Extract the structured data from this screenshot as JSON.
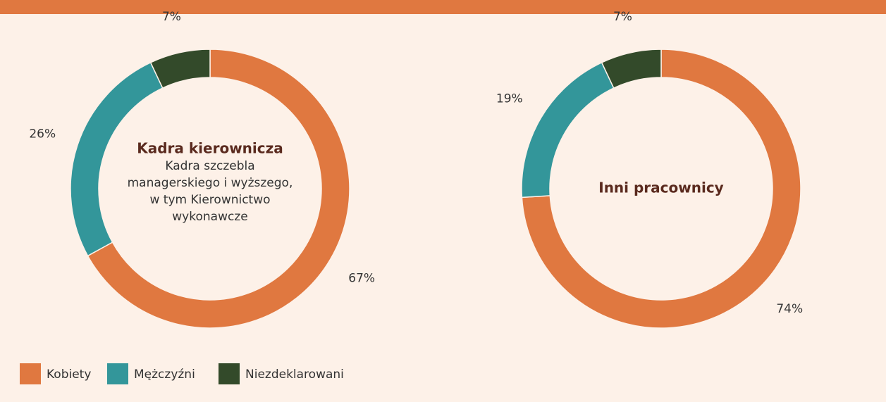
{
  "chart_data": [
    {
      "type": "pie",
      "title": "Kadra kierownicza",
      "subtitle": [
        "Kadra szczebla",
        "managerskiego i wyższego,",
        "w tym Kierownictwo",
        "wykonawcze"
      ],
      "values": [
        67,
        26,
        7
      ],
      "value_labels": [
        "67%",
        "26%",
        "7%"
      ]
    },
    {
      "type": "pie",
      "title": "Inni pracownicy",
      "values": [
        74,
        19,
        7
      ],
      "value_labels": [
        "74%",
        "19%",
        "7%"
      ]
    }
  ],
  "legend": {
    "items": [
      "Kobiety",
      "Mężczyźni",
      "Niezdeklarowani"
    ],
    "colors": [
      "#e07840",
      "#33969a",
      "#334a2a"
    ]
  }
}
